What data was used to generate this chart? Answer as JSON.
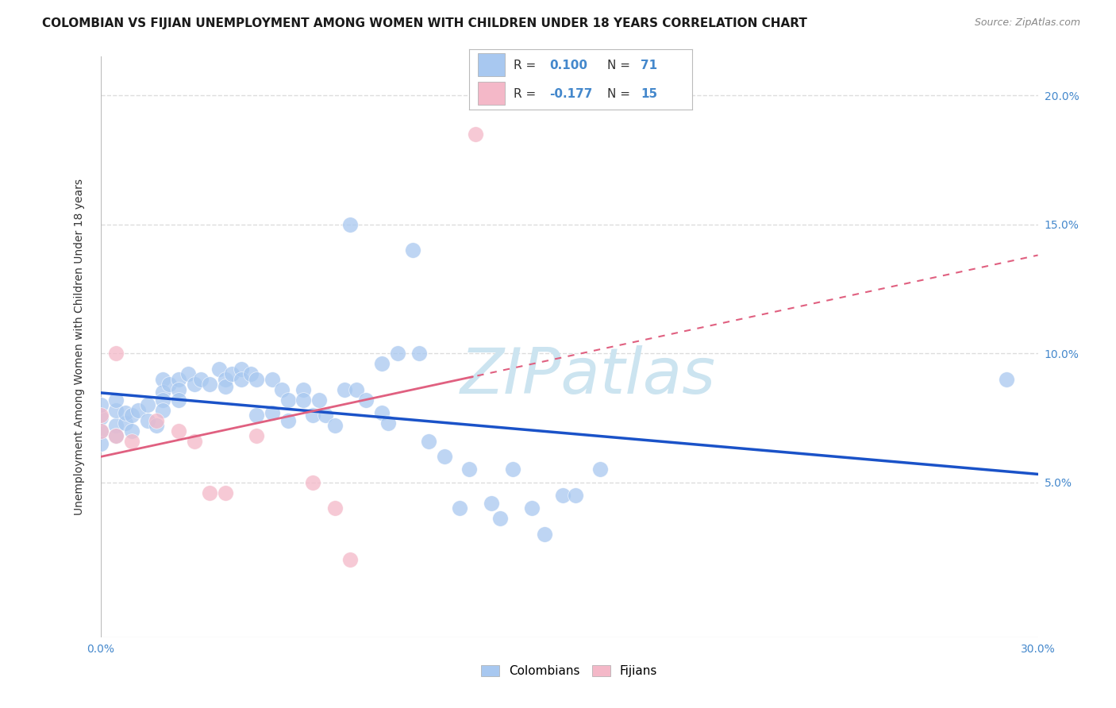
{
  "title": "COLOMBIAN VS FIJIAN UNEMPLOYMENT AMONG WOMEN WITH CHILDREN UNDER 18 YEARS CORRELATION CHART",
  "source": "Source: ZipAtlas.com",
  "ylabel": "Unemployment Among Women with Children Under 18 years",
  "xlim": [
    0.0,
    0.3
  ],
  "ylim": [
    -0.01,
    0.215
  ],
  "yticks": [
    0.0,
    0.05,
    0.1,
    0.15,
    0.2
  ],
  "ytick_labels": [
    "",
    "5.0%",
    "10.0%",
    "15.0%",
    "20.0%"
  ],
  "xticks": [
    0.0,
    0.05,
    0.1,
    0.15,
    0.2,
    0.25,
    0.3
  ],
  "colombian_R": 0.1,
  "colombian_N": 71,
  "fijian_R": -0.177,
  "fijian_N": 15,
  "colombian_color": "#a8c8f0",
  "fijian_color": "#f4b8c8",
  "colombian_line_color": "#1a52c8",
  "fijian_line_color": "#e06080",
  "colombian_scatter": [
    [
      0.0,
      0.07
    ],
    [
      0.0,
      0.065
    ],
    [
      0.0,
      0.075
    ],
    [
      0.0,
      0.08
    ],
    [
      0.005,
      0.072
    ],
    [
      0.005,
      0.078
    ],
    [
      0.005,
      0.068
    ],
    [
      0.005,
      0.082
    ],
    [
      0.008,
      0.073
    ],
    [
      0.008,
      0.077
    ],
    [
      0.01,
      0.076
    ],
    [
      0.01,
      0.07
    ],
    [
      0.012,
      0.078
    ],
    [
      0.015,
      0.08
    ],
    [
      0.015,
      0.074
    ],
    [
      0.018,
      0.072
    ],
    [
      0.02,
      0.09
    ],
    [
      0.02,
      0.085
    ],
    [
      0.02,
      0.082
    ],
    [
      0.02,
      0.078
    ],
    [
      0.022,
      0.088
    ],
    [
      0.025,
      0.09
    ],
    [
      0.025,
      0.086
    ],
    [
      0.025,
      0.082
    ],
    [
      0.028,
      0.092
    ],
    [
      0.03,
      0.088
    ],
    [
      0.032,
      0.09
    ],
    [
      0.035,
      0.088
    ],
    [
      0.038,
      0.094
    ],
    [
      0.04,
      0.09
    ],
    [
      0.04,
      0.087
    ],
    [
      0.042,
      0.092
    ],
    [
      0.045,
      0.094
    ],
    [
      0.045,
      0.09
    ],
    [
      0.048,
      0.092
    ],
    [
      0.05,
      0.09
    ],
    [
      0.05,
      0.076
    ],
    [
      0.055,
      0.09
    ],
    [
      0.055,
      0.077
    ],
    [
      0.058,
      0.086
    ],
    [
      0.06,
      0.082
    ],
    [
      0.06,
      0.074
    ],
    [
      0.065,
      0.086
    ],
    [
      0.065,
      0.082
    ],
    [
      0.068,
      0.076
    ],
    [
      0.07,
      0.082
    ],
    [
      0.072,
      0.076
    ],
    [
      0.075,
      0.072
    ],
    [
      0.078,
      0.086
    ],
    [
      0.08,
      0.15
    ],
    [
      0.082,
      0.086
    ],
    [
      0.085,
      0.082
    ],
    [
      0.09,
      0.096
    ],
    [
      0.09,
      0.077
    ],
    [
      0.092,
      0.073
    ],
    [
      0.095,
      0.1
    ],
    [
      0.1,
      0.14
    ],
    [
      0.102,
      0.1
    ],
    [
      0.105,
      0.066
    ],
    [
      0.11,
      0.06
    ],
    [
      0.115,
      0.04
    ],
    [
      0.118,
      0.055
    ],
    [
      0.125,
      0.042
    ],
    [
      0.128,
      0.036
    ],
    [
      0.132,
      0.055
    ],
    [
      0.138,
      0.04
    ],
    [
      0.142,
      0.03
    ],
    [
      0.148,
      0.045
    ],
    [
      0.152,
      0.045
    ],
    [
      0.16,
      0.055
    ],
    [
      0.29,
      0.09
    ]
  ],
  "fijian_scatter": [
    [
      0.0,
      0.076
    ],
    [
      0.0,
      0.07
    ],
    [
      0.005,
      0.068
    ],
    [
      0.005,
      0.1
    ],
    [
      0.01,
      0.066
    ],
    [
      0.018,
      0.074
    ],
    [
      0.025,
      0.07
    ],
    [
      0.03,
      0.066
    ],
    [
      0.035,
      0.046
    ],
    [
      0.04,
      0.046
    ],
    [
      0.068,
      0.05
    ],
    [
      0.075,
      0.04
    ],
    [
      0.08,
      0.02
    ],
    [
      0.05,
      0.068
    ],
    [
      0.12,
      0.185
    ]
  ],
  "background_color": "#ffffff",
  "grid_color": "#dddddd",
  "watermark_color": "#cce4f0",
  "tick_color": "#4488cc",
  "legend_text_color": "#333333",
  "r_value_color": "#4488cc",
  "n_value_color": "#4488cc"
}
